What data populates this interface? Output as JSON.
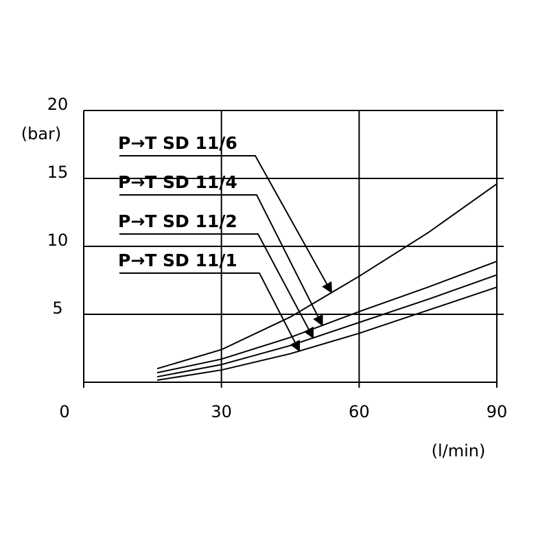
{
  "chart_data": {
    "type": "line",
    "y_label": "(bar)",
    "x_label": "(l/min)",
    "x": [
      16,
      30,
      45,
      60,
      75,
      90
    ],
    "series": [
      {
        "name": "P→T SD 11/6",
        "color": "#000000",
        "values": [
          1.0,
          2.4,
          4.8,
          7.8,
          11.0,
          14.6
        ]
      },
      {
        "name": "P→T SD 11/4",
        "color": "#000000",
        "values": [
          0.7,
          1.7,
          3.3,
          5.2,
          7.0,
          8.9
        ]
      },
      {
        "name": "P→T SD 11/2",
        "color": "#000000",
        "values": [
          0.4,
          1.3,
          2.7,
          4.4,
          6.1,
          7.9
        ]
      },
      {
        "name": "P→T SD 11/1",
        "color": "#000000",
        "values": [
          0.15,
          0.9,
          2.1,
          3.6,
          5.3,
          7.0
        ]
      }
    ],
    "xlim": [
      0,
      90
    ],
    "xticks": [
      0,
      30,
      60,
      90
    ],
    "ylim": [
      0,
      20
    ],
    "yticks": [
      5,
      10,
      15,
      20
    ],
    "grid": true
  }
}
